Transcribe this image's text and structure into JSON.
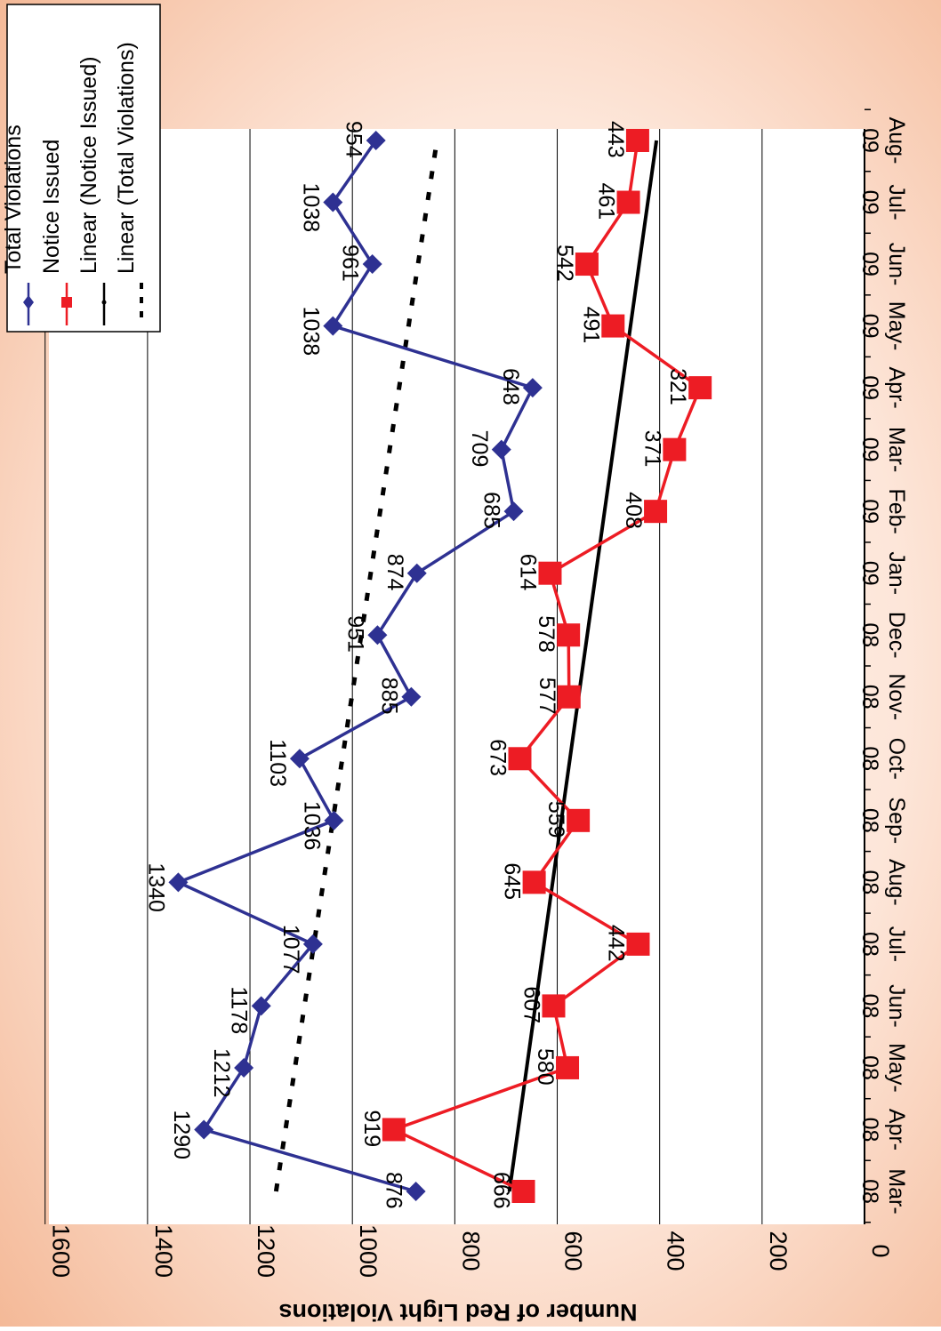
{
  "chart_data": {
    "type": "line",
    "title": "",
    "ylabel": "Number of Red Light Violations",
    "xlabel": "",
    "ylim": [
      0,
      1600
    ],
    "yticks": [
      0,
      200,
      400,
      600,
      800,
      1000,
      1200,
      1400,
      1600
    ],
    "grid": true,
    "legend_position": "top-left",
    "categories": [
      [
        "Mar-",
        "08"
      ],
      [
        "Apr-",
        "08"
      ],
      [
        "May-",
        "08"
      ],
      [
        "Jun-",
        "08"
      ],
      [
        "Jul-",
        "08"
      ],
      [
        "Aug-",
        "08"
      ],
      [
        "Sep-",
        "08"
      ],
      [
        "Oct-",
        "08"
      ],
      [
        "Nov-",
        "08"
      ],
      [
        "Dec-",
        "08"
      ],
      [
        "Jan-",
        "09"
      ],
      [
        "Feb-",
        "09"
      ],
      [
        "Mar-",
        "09"
      ],
      [
        "Apr-",
        "09"
      ],
      [
        "May-",
        "09"
      ],
      [
        "Jun-",
        "09"
      ],
      [
        "Jul-",
        "09"
      ],
      [
        "Aug-",
        "09"
      ]
    ],
    "series": [
      {
        "name": "Total Violations",
        "color": "#2e3192",
        "marker": "diamond",
        "values": [
          876,
          1290,
          1212,
          1178,
          1077,
          1340,
          1036,
          1103,
          885,
          951,
          874,
          685,
          709,
          648,
          1038,
          961,
          1038,
          954
        ]
      },
      {
        "name": "Notice Issued",
        "color": "#ed1c24",
        "marker": "square",
        "values": [
          666,
          919,
          580,
          607,
          442,
          645,
          559,
          673,
          577,
          578,
          614,
          408,
          371,
          321,
          491,
          542,
          461,
          443
        ]
      }
    ],
    "trendlines": [
      {
        "name": "Linear (Notice Issued)",
        "color": "#000000",
        "style": "solid",
        "of": "Notice Issued"
      },
      {
        "name": "Linear (Total Violations)",
        "color": "#000000",
        "style": "dashed",
        "of": "Total Violations"
      }
    ]
  }
}
